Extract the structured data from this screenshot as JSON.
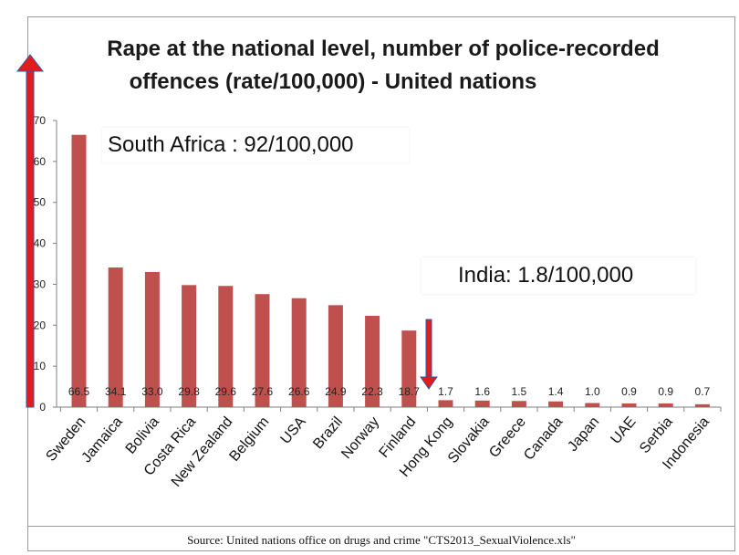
{
  "chart_data": {
    "type": "bar",
    "title": "Rape at the national level, number of police-recorded offences (rate/100,000) - United nations",
    "title_line1": "Rape at the national level, number of police-recorded",
    "title_line2": "offences (rate/100,000) - United nations",
    "categories": [
      "Sweden",
      "Jamaica",
      "Bolivia",
      "Costa Rica",
      "New Zealand",
      "Belgium",
      "USA",
      "Brazil",
      "Norway",
      "Finland",
      "Hong Kong",
      "Slovakia",
      "Greece",
      "Canada",
      "Japan",
      "UAE",
      "Serbia",
      "Indonesia"
    ],
    "values": [
      66.5,
      34.1,
      33.0,
      29.8,
      29.6,
      27.6,
      26.6,
      24.9,
      22.3,
      18.7,
      1.7,
      1.6,
      1.5,
      1.4,
      1.0,
      0.9,
      0.9,
      0.7
    ],
    "value_labels": [
      "66.5",
      "34.1",
      "33.0",
      "29.8",
      "29.6",
      "27.6",
      "26.6",
      "24.9",
      "22.3",
      "18.7",
      "1.7",
      "1.6",
      "1.5",
      "1.4",
      "1.0",
      "0.9",
      "0.9",
      "0.7"
    ],
    "ylim": [
      0,
      70
    ],
    "yticks": [
      0,
      10,
      20,
      30,
      40,
      50,
      60,
      70
    ],
    "xlabel": "",
    "ylabel": "",
    "bar_color": "#c0504d",
    "annotations": {
      "south_africa": "South Africa : 92/100,000",
      "india": "India: 1.8/100,000"
    },
    "source": "Source: United nations office on drugs and crime \"CTS2013_SexualViolence.xls\""
  },
  "colors": {
    "bar": "#c0504d",
    "arrow_red": "#e31b1b",
    "arrow_outline": "#2e5aa8",
    "axis": "#7f7f7f"
  }
}
